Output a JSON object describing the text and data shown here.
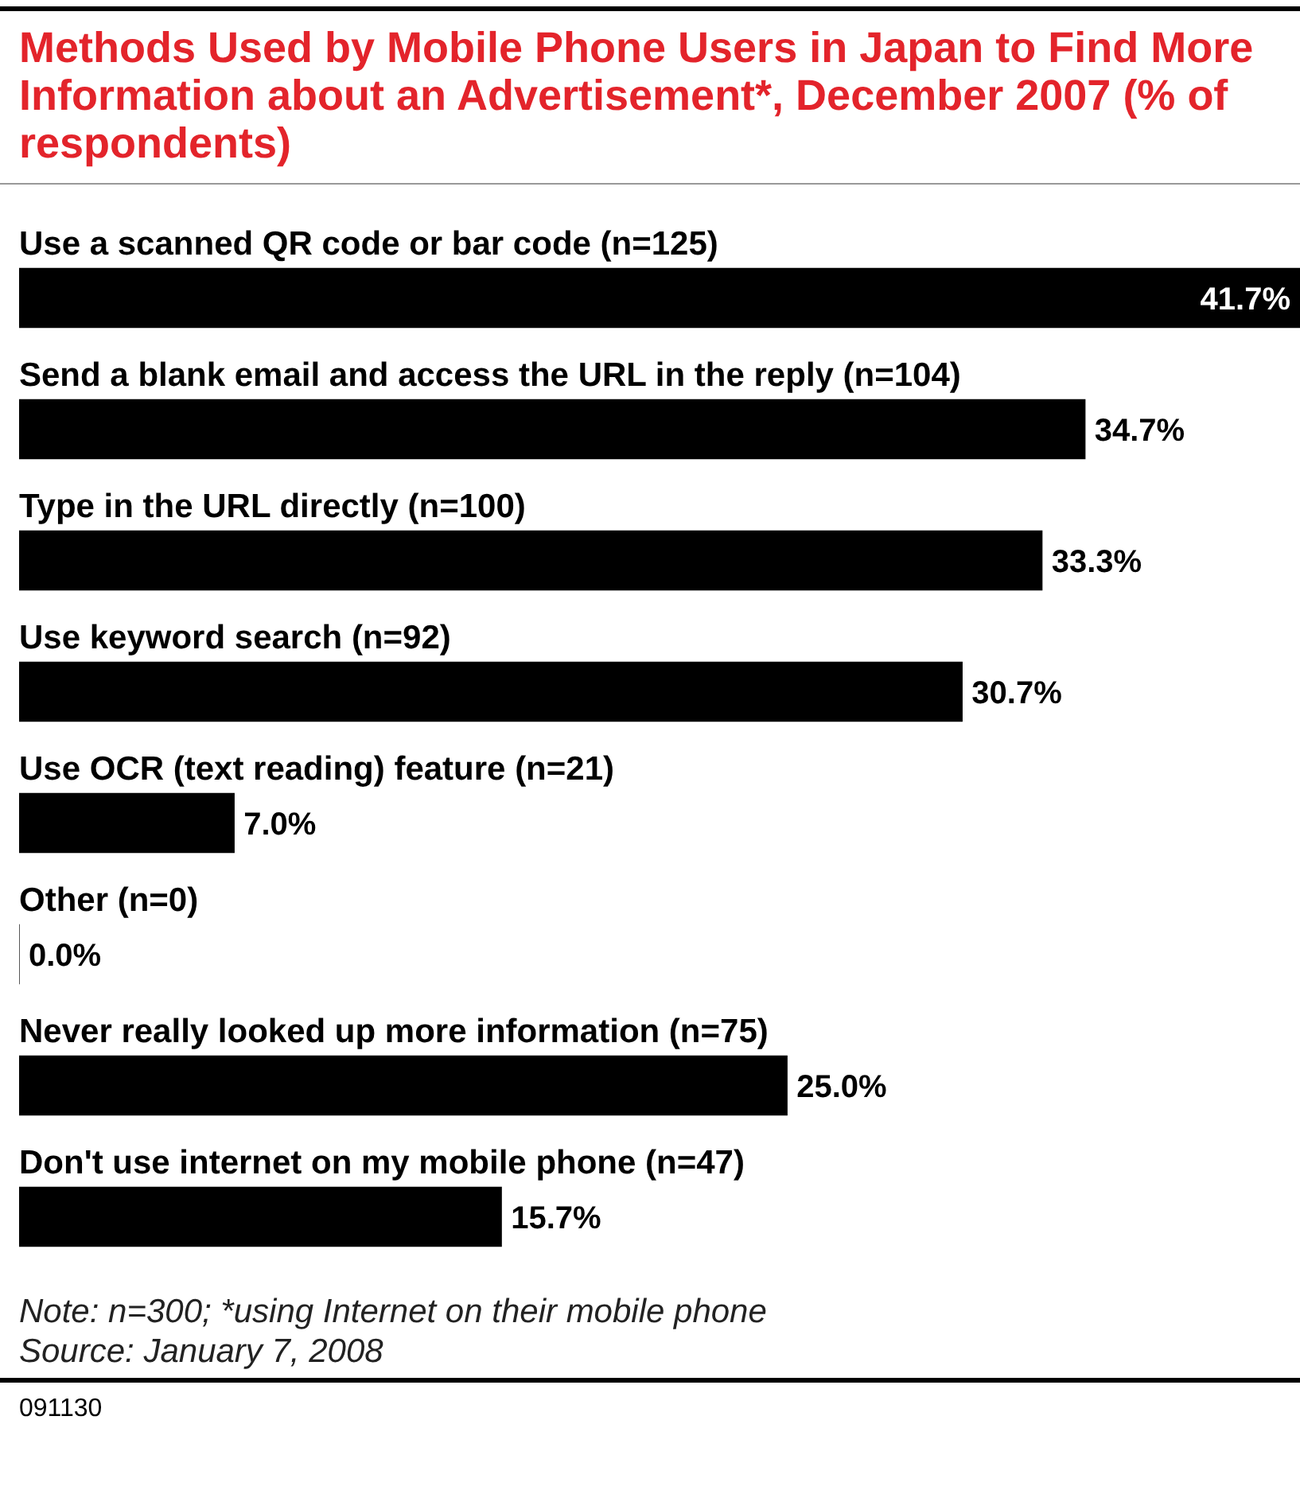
{
  "chart_data": {
    "type": "bar",
    "orientation": "horizontal",
    "title": "Methods Used by Mobile Phone Users in Japan to Find More Information about an Advertisement*, December 2007 (% of respondents)",
    "categories": [
      "Use a scanned QR code or bar code (n=125)",
      "Send a blank email and access the URL in the reply (n=104)",
      "Type in the URL directly (n=100)",
      "Use keyword search (n=92)",
      "Use OCR (text reading) feature (n=21)",
      "Other (n=0)",
      "Never really looked up more information (n=75)",
      "Don't use internet on my mobile phone (n=47)"
    ],
    "values": [
      41.7,
      34.7,
      33.3,
      30.7,
      7.0,
      0.0,
      25.0,
      15.7
    ],
    "color": "#000000",
    "value_labels": [
      "41.7%",
      "34.7%",
      "33.3%",
      "30.7%",
      "7.0%",
      "0.0%",
      "25.0%",
      "15.7%"
    ],
    "annotations": [
      "Note: n=300; *using Internet on their mobile phone",
      "Source: January 7, 2008",
      "091130"
    ]
  }
}
